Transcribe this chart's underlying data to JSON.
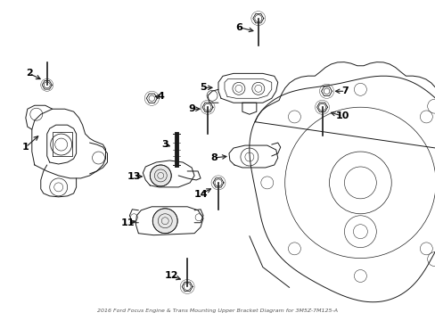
{
  "bg_color": "#ffffff",
  "line_color": "#1a1a1a",
  "label_color": "#000000",
  "title": "2016 Ford Focus Engine & Trans Mounting Upper Bracket Diagram for 3M5Z-7M125-A",
  "fig_width": 4.89,
  "fig_height": 3.6,
  "dpi": 100
}
